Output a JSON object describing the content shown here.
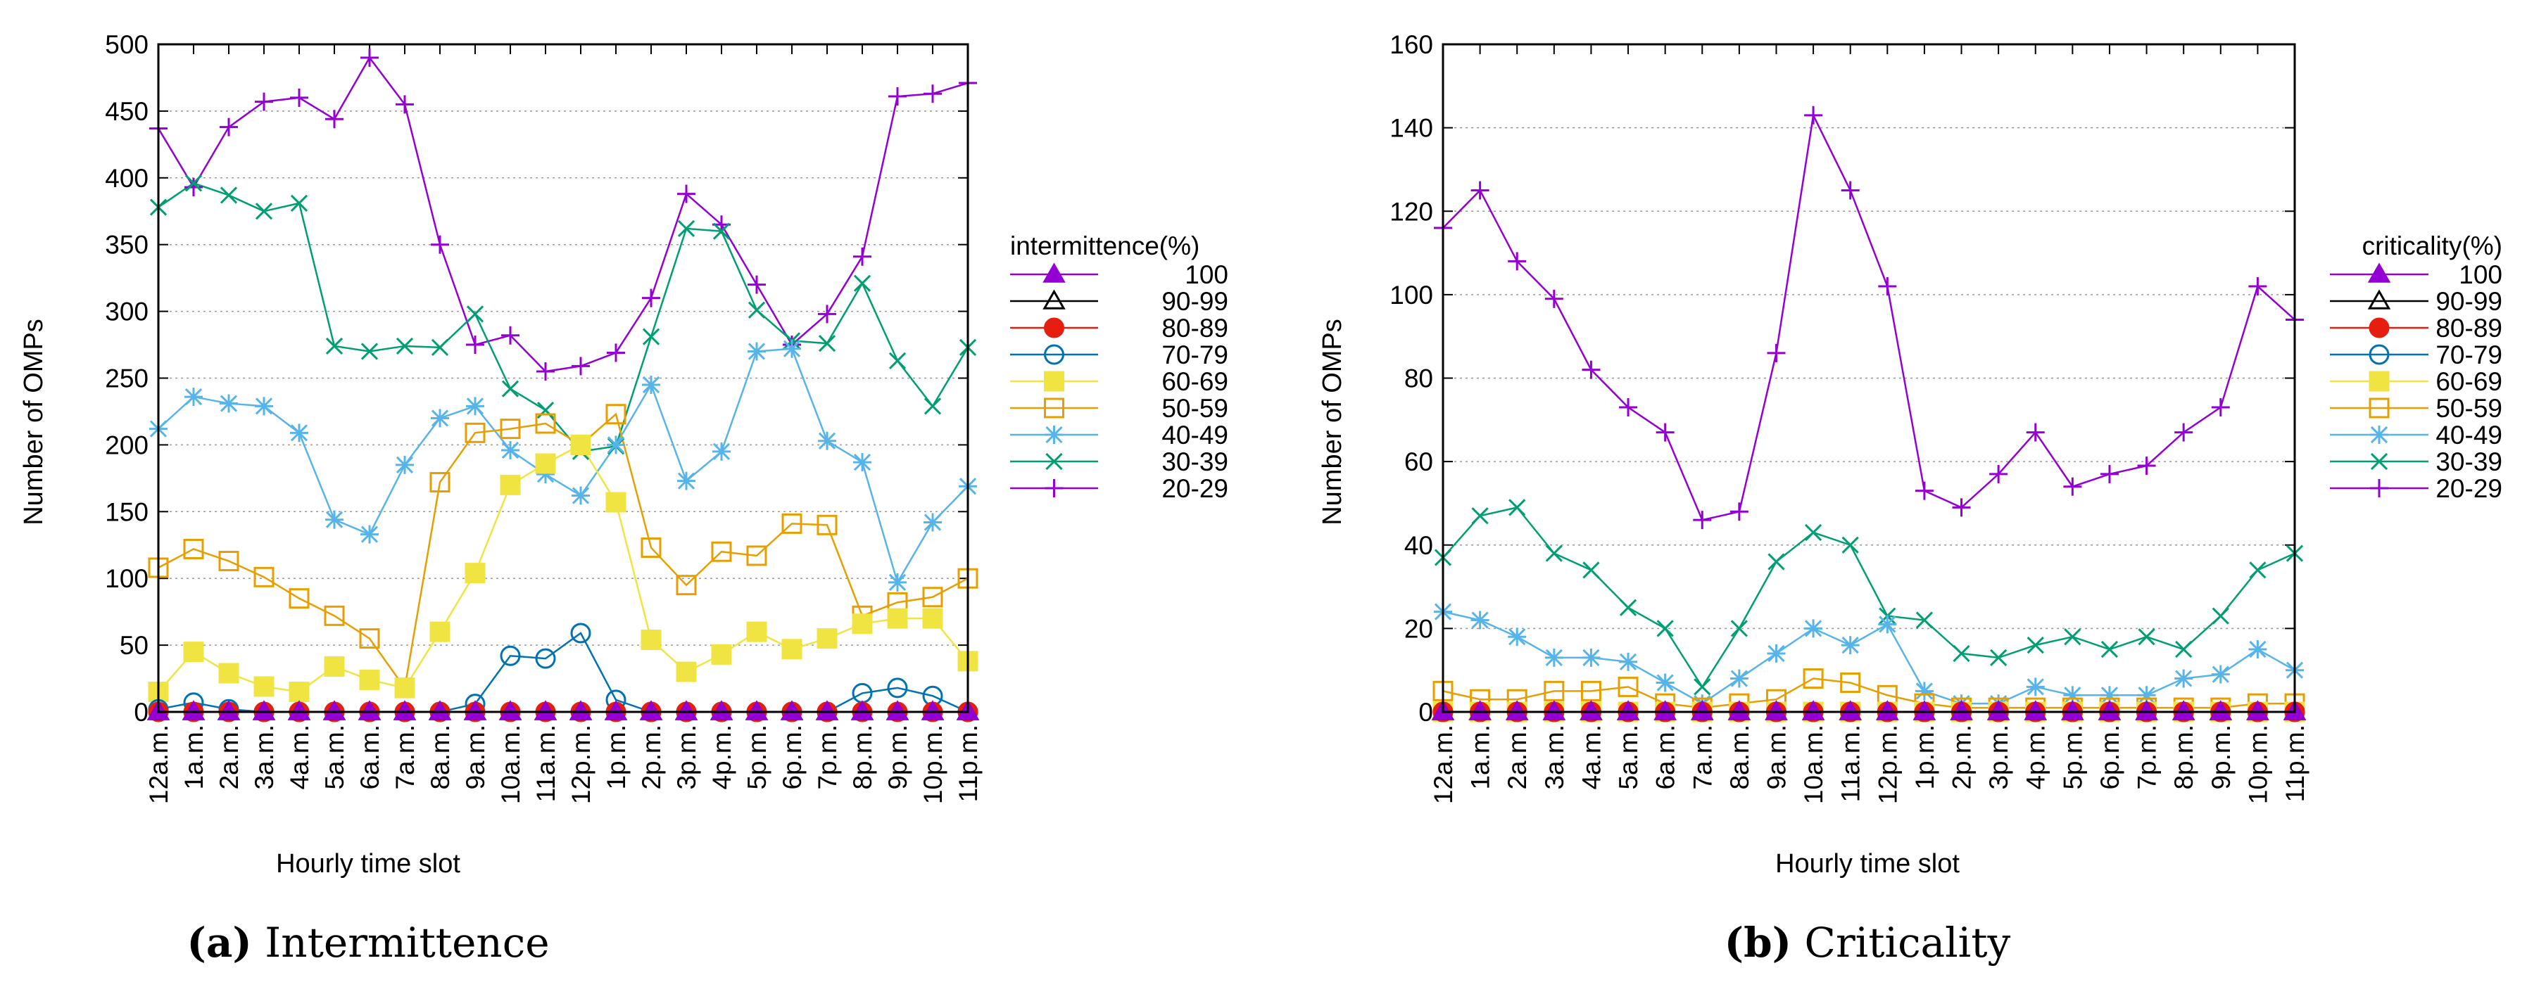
{
  "chart_data": [
    {
      "type": "line",
      "caption_letter": "(a)",
      "caption_text": " Intermittence",
      "xlabel": "Hourly time slot",
      "ylabel": "Number of OMPs",
      "ylim": [
        0,
        500
      ],
      "yticks": [
        0,
        50,
        100,
        150,
        200,
        250,
        300,
        350,
        400,
        450,
        500
      ],
      "grid": true,
      "legend_title": "intermittence(%)",
      "legend_position": "right",
      "categories": [
        "12a.m.",
        "1a.m.",
        "2a.m.",
        "3a.m.",
        "4a.m.",
        "5a.m.",
        "6a.m.",
        "7a.m.",
        "8a.m.",
        "9a.m.",
        "10a.m.",
        "11a.m.",
        "12p.m.",
        "1p.m.",
        "2p.m.",
        "3p.m.",
        "4p.m.",
        "5p.m.",
        "6p.m.",
        "7p.m.",
        "8p.m.",
        "9p.m.",
        "10p.m.",
        "11p.m."
      ],
      "series": [
        {
          "name": "100",
          "color": "#9400d3",
          "marker": "tri-filled",
          "values": [
            0,
            0,
            0,
            0,
            0,
            0,
            0,
            0,
            0,
            0,
            0,
            0,
            0,
            0,
            0,
            0,
            0,
            0,
            0,
            0,
            0,
            0,
            0,
            0
          ]
        },
        {
          "name": "90-99",
          "color": "#000000",
          "marker": "tri-open",
          "values": [
            0,
            0,
            0,
            0,
            0,
            0,
            0,
            0,
            0,
            0,
            0,
            0,
            0,
            0,
            0,
            0,
            0,
            0,
            0,
            0,
            0,
            0,
            0,
            0
          ]
        },
        {
          "name": "80-89",
          "color": "#e51e10",
          "marker": "circle-filled",
          "values": [
            0,
            0,
            0,
            0,
            0,
            0,
            0,
            0,
            0,
            0,
            0,
            0,
            0,
            0,
            0,
            0,
            0,
            0,
            0,
            0,
            0,
            0,
            0,
            0
          ]
        },
        {
          "name": "70-79",
          "color": "#0072b2",
          "marker": "circle-open",
          "values": [
            2,
            7,
            2,
            0,
            0,
            0,
            0,
            0,
            0,
            6,
            42,
            40,
            59,
            9,
            0,
            0,
            0,
            0,
            0,
            0,
            14,
            18,
            12,
            0
          ]
        },
        {
          "name": "60-69",
          "color": "#f0e442",
          "marker": "square-filled",
          "values": [
            15,
            45,
            29,
            19,
            15,
            34,
            24,
            18,
            60,
            104,
            170,
            186,
            200,
            157,
            54,
            30,
            43,
            60,
            47,
            55,
            66,
            70,
            70,
            38
          ]
        },
        {
          "name": "50-59",
          "color": "#e69f00",
          "marker": "square-open",
          "values": [
            108,
            122,
            113,
            101,
            85,
            72,
            55,
            18,
            172,
            209,
            212,
            216,
            200,
            223,
            123,
            95,
            120,
            117,
            141,
            140,
            72,
            82,
            86,
            100
          ]
        },
        {
          "name": "40-49",
          "color": "#56b4e9",
          "marker": "star",
          "values": [
            212,
            236,
            231,
            229,
            209,
            144,
            133,
            185,
            220,
            229,
            196,
            178,
            162,
            200,
            245,
            173,
            195,
            270,
            272,
            203,
            187,
            97,
            142,
            169
          ]
        },
        {
          "name": "30-39",
          "color": "#009e73",
          "marker": "x",
          "values": [
            378,
            396,
            387,
            375,
            381,
            274,
            270,
            274,
            273,
            298,
            242,
            226,
            195,
            199,
            281,
            362,
            360,
            301,
            278,
            276,
            321,
            263,
            229,
            273
          ]
        },
        {
          "name": "20-29",
          "color": "#9400d3",
          "marker": "plus",
          "values": [
            437,
            393,
            438,
            457,
            460,
            444,
            490,
            455,
            350,
            275,
            282,
            255,
            259,
            269,
            310,
            388,
            365,
            320,
            275,
            298,
            341,
            461,
            463,
            471
          ]
        }
      ]
    },
    {
      "type": "line",
      "caption_letter": "(b)",
      "caption_text": " Criticality",
      "xlabel": "Hourly time slot",
      "ylabel": "Number of OMPs",
      "ylim": [
        0,
        160
      ],
      "yticks": [
        0,
        20,
        40,
        60,
        80,
        100,
        120,
        140,
        160
      ],
      "grid": true,
      "legend_title": "criticality(%)",
      "legend_position": "right",
      "categories": [
        "12a.m.",
        "1a.m.",
        "2a.m.",
        "3a.m.",
        "4a.m.",
        "5a.m.",
        "6a.m.",
        "7a.m.",
        "8a.m.",
        "9a.m.",
        "10a.m.",
        "11a.m.",
        "12p.m.",
        "1p.m.",
        "2p.m.",
        "3p.m.",
        "4p.m.",
        "5p.m.",
        "6p.m.",
        "7p.m.",
        "8p.m.",
        "9p.m.",
        "10p.m.",
        "11p.m."
      ],
      "series": [
        {
          "name": "100",
          "color": "#9400d3",
          "marker": "tri-filled",
          "values": [
            0,
            0,
            0,
            0,
            0,
            0,
            0,
            0,
            0,
            0,
            0,
            0,
            0,
            0,
            0,
            0,
            0,
            0,
            0,
            0,
            0,
            0,
            0,
            0
          ]
        },
        {
          "name": "90-99",
          "color": "#000000",
          "marker": "tri-open",
          "values": [
            0,
            0,
            0,
            0,
            0,
            0,
            0,
            0,
            0,
            0,
            0,
            0,
            0,
            0,
            0,
            0,
            0,
            0,
            0,
            0,
            0,
            0,
            0,
            0
          ]
        },
        {
          "name": "80-89",
          "color": "#e51e10",
          "marker": "circle-filled",
          "values": [
            0,
            0,
            0,
            0,
            0,
            0,
            0,
            0,
            0,
            0,
            0,
            0,
            0,
            0,
            0,
            0,
            0,
            0,
            0,
            0,
            0,
            0,
            0,
            0
          ]
        },
        {
          "name": "70-79",
          "color": "#0072b2",
          "marker": "circle-open",
          "values": [
            0,
            0,
            0,
            0,
            0,
            0,
            0,
            0,
            0,
            0,
            0,
            0,
            0,
            0,
            0,
            0,
            0,
            0,
            0,
            0,
            0,
            0,
            0,
            0
          ]
        },
        {
          "name": "60-69",
          "color": "#f0e442",
          "marker": "square-filled",
          "values": [
            0,
            0,
            0,
            0,
            0,
            0,
            0,
            0,
            0,
            0,
            0,
            0,
            0,
            0,
            0,
            0,
            0,
            0,
            0,
            0,
            0,
            0,
            0,
            0
          ]
        },
        {
          "name": "50-59",
          "color": "#e69f00",
          "marker": "square-open",
          "values": [
            5,
            3,
            3,
            5,
            5,
            6,
            2,
            1,
            2,
            3,
            8,
            7,
            4,
            2,
            1,
            1,
            1,
            1,
            1,
            1,
            1,
            1,
            2,
            2
          ]
        },
        {
          "name": "40-49",
          "color": "#56b4e9",
          "marker": "star",
          "values": [
            24,
            22,
            18,
            13,
            13,
            12,
            7,
            2,
            8,
            14,
            20,
            16,
            21,
            5,
            2,
            2,
            6,
            4,
            4,
            4,
            8,
            9,
            15,
            10
          ]
        },
        {
          "name": "30-39",
          "color": "#009e73",
          "marker": "x",
          "values": [
            37,
            47,
            49,
            38,
            34,
            25,
            20,
            6,
            20,
            36,
            43,
            40,
            23,
            22,
            14,
            13,
            16,
            18,
            15,
            18,
            15,
            23,
            34,
            38
          ]
        },
        {
          "name": "20-29",
          "color": "#9400d3",
          "marker": "plus",
          "values": [
            116,
            125,
            108,
            99,
            82,
            73,
            67,
            46,
            48,
            86,
            143,
            125,
            102,
            53,
            49,
            57,
            67,
            54,
            57,
            59,
            67,
            73,
            102,
            94
          ]
        }
      ]
    }
  ]
}
